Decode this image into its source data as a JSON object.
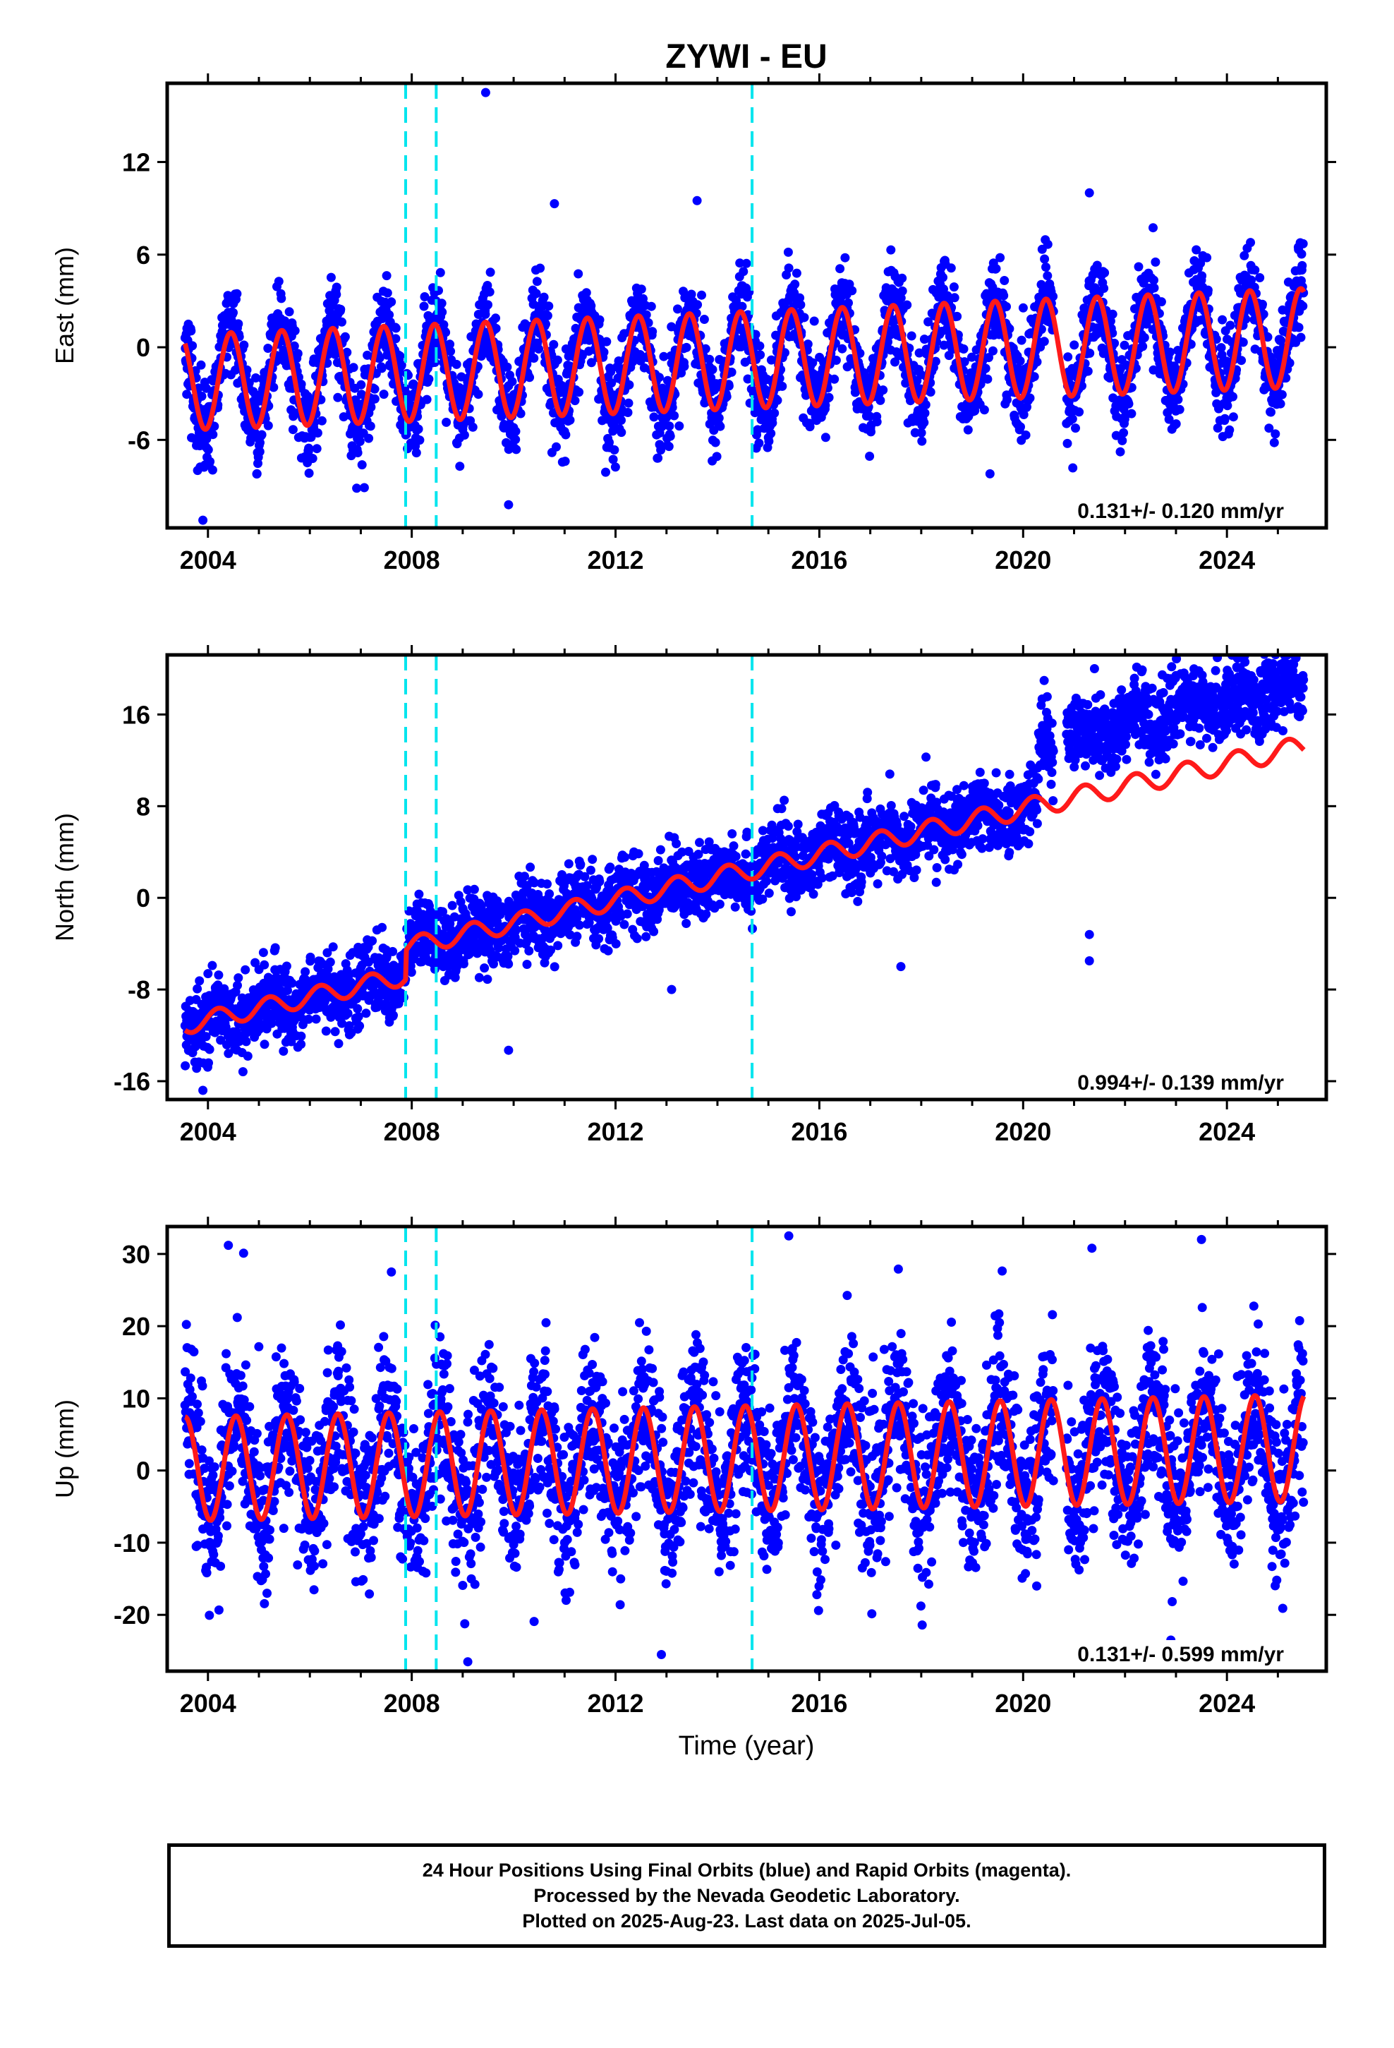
{
  "chart_data": {
    "type": "scatter",
    "title": "ZYWI - EU",
    "xlabel": "Time (year)",
    "xlim": [
      2003.2,
      2025.95
    ],
    "xticks": [
      2004,
      2008,
      2012,
      2016,
      2020,
      2024
    ],
    "offsets": [
      2007.88,
      2008.48,
      2014.68
    ],
    "colors": {
      "points": "#0000ff",
      "model": "#ff1a1a",
      "offsets": "#00e5ee",
      "frame": "#000000"
    },
    "panels": [
      {
        "name": "east",
        "ylabel": "East (mm)",
        "ylim": [
          -11.7,
          17.1
        ],
        "yticks": [
          -6,
          0,
          6,
          12
        ],
        "rate_label": "0.131+/- 0.120 mm/yr",
        "trend": {
          "ref_year": 2014,
          "intercept": -0.9,
          "slope": 0.131
        },
        "seasonal": {
          "amplitude_start": 3.1,
          "amplitude_end": 3.2,
          "phase_peak": 0.45
        },
        "scatter": {
          "noise": 1.5,
          "n_points": 3400
        },
        "outliers": [
          [
            2009.45,
            16.5
          ],
          [
            2021.3,
            10.0
          ],
          [
            2013.6,
            9.5
          ],
          [
            2010.8,
            9.3
          ],
          [
            2009.9,
            -10.2
          ],
          [
            2003.9,
            -11.2
          ],
          [
            2019.35,
            -8.2
          ]
        ]
      },
      {
        "name": "north",
        "ylabel": "North (mm)",
        "ylim": [
          -17.6,
          21.2
        ],
        "yticks": [
          -16,
          -8,
          0,
          8,
          16
        ],
        "rate_label": "0.994+/- 0.139 mm/yr",
        "trend": {
          "ref_year": 2014,
          "intercept": -0.7,
          "slope": 0.994
        },
        "steps": [
          [
            2007.88,
            2.5
          ],
          [
            2020.3,
            5.5
          ]
        ],
        "model_steps": [
          [
            2007.88,
            2.5
          ]
        ],
        "seasonal": {
          "amplitude_start": 0.8,
          "amplitude_end": 0.9,
          "phase_peak": 0.2
        },
        "scatter": {
          "noise": 1.6,
          "n_points": 3400
        },
        "outliers": [
          [
            2021.3,
            -5.5
          ],
          [
            2021.3,
            -3.2
          ],
          [
            2021.4,
            20.0
          ],
          [
            2009.9,
            -13.3
          ],
          [
            2013.1,
            -8.0
          ],
          [
            2003.9,
            -16.8
          ],
          [
            2017.6,
            -6.0
          ]
        ]
      },
      {
        "name": "up",
        "ylabel": "Up (mm)",
        "ylim": [
          -27.8,
          33.8
        ],
        "yticks": [
          -20,
          -10,
          0,
          10,
          20,
          30
        ],
        "rate_label": "0.131+/- 0.599 mm/yr",
        "trend": {
          "ref_year": 2014,
          "intercept": 1.6,
          "slope": 0.131
        },
        "seasonal": {
          "amplitude_start": 7.2,
          "amplitude_end": 7.4,
          "phase_peak": 0.55
        },
        "scatter": {
          "noise": 5.5,
          "n_points": 3400
        },
        "outliers": [
          [
            2004.4,
            31.2
          ],
          [
            2004.7,
            30.1
          ],
          [
            2015.4,
            32.5
          ],
          [
            2021.35,
            30.8
          ],
          [
            2023.5,
            32.0
          ],
          [
            2009.1,
            -26.5
          ],
          [
            2012.9,
            -25.5
          ],
          [
            2022.9,
            -23.5
          ],
          [
            2007.6,
            27.5
          ],
          [
            2017.55,
            27.9
          ]
        ]
      }
    ]
  },
  "caption": {
    "line1": "24 Hour Positions Using Final Orbits (blue) and Rapid Orbits (magenta).",
    "line2": "Processed by the Nevada Geodetic Laboratory.",
    "line3": "Plotted on 2025-Aug-23. Last data on 2025-Jul-05."
  }
}
